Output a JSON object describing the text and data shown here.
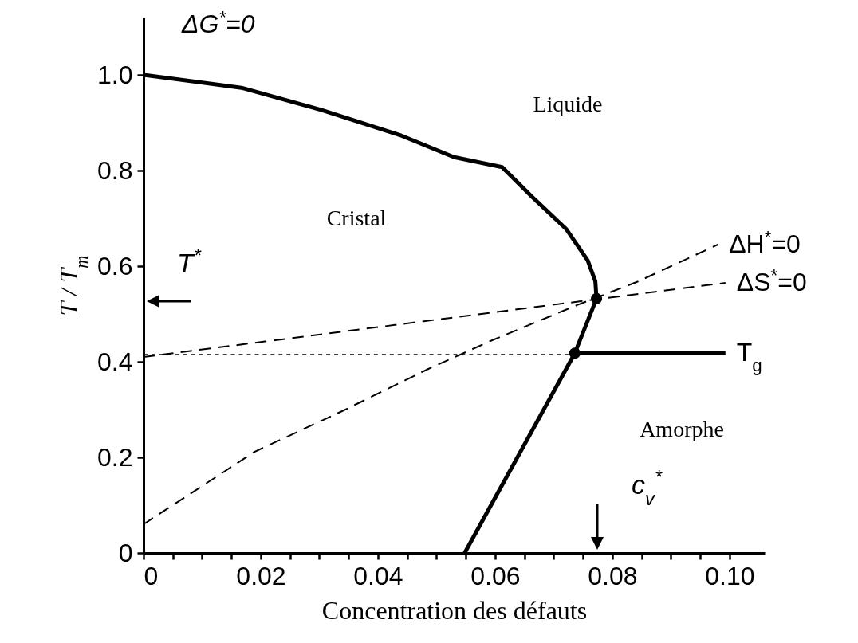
{
  "chart_data": {
    "type": "line",
    "xlabel": "Concentration des défauts",
    "ylabel": "T / T$_{m}$",
    "xlim": [
      0,
      0.106
    ],
    "ylim": [
      0,
      1.12
    ],
    "xticks": [
      0,
      {
        "value": 0.005,
        "label": null
      },
      {
        "value": 0.01,
        "label": null
      },
      {
        "value": 0.015,
        "label": null
      },
      0.02,
      {
        "value": 0.025,
        "label": null
      },
      {
        "value": 0.03,
        "label": null
      },
      {
        "value": 0.035,
        "label": null
      },
      0.04,
      {
        "value": 0.045,
        "label": null
      },
      {
        "value": 0.05,
        "label": null
      },
      {
        "value": 0.055,
        "label": null
      },
      0.06,
      {
        "value": 0.065,
        "label": null
      },
      {
        "value": 0.07,
        "label": null
      },
      {
        "value": 0.075,
        "label": null
      },
      0.08,
      {
        "value": 0.085,
        "label": null
      },
      {
        "value": 0.09,
        "label": null
      },
      {
        "value": 0.095,
        "label": null
      },
      {
        "value": 0.1,
        "label": "0.10"
      }
    ],
    "yticks": [
      0,
      0.2,
      0.4,
      0.6,
      0.8,
      {
        "value": 1,
        "label": "1.0"
      }
    ],
    "series": [
      {
        "name": "ΔG$^{*}$=0",
        "line_style": "solid",
        "color": "#000000",
        "x": [
          0.0548,
          0.0736,
          0.0773,
          0.0771,
          0.0758,
          0.0721,
          0.0663,
          0.0612,
          0.053,
          0.044,
          0.0303,
          0.0167,
          0
        ],
        "values": [
          0,
          0.418,
          0.532,
          0.568,
          0.612,
          0.678,
          0.745,
          0.807,
          0.828,
          0.873,
          0.927,
          0.973,
          1.0
        ]
      },
      {
        "name": "ΔH$^{*}$=0",
        "line_style": "dashed",
        "color": "#000000",
        "x": [
          0,
          0.019,
          0.0336,
          0.0486,
          0.0595,
          0.0739,
          0.0844,
          0.098
        ],
        "values": [
          0.06,
          0.212,
          0.295,
          0.385,
          0.445,
          0.518,
          0.568,
          0.645
        ]
      },
      {
        "name": "ΔS$^{*}$=0",
        "line_style": "dashed",
        "color": "#000000",
        "x": [
          0,
          0.0993
        ],
        "values": [
          0.41,
          0.565
        ]
      },
      {
        "name": "T$_{g}$",
        "line_style": "solid",
        "color": "#000000",
        "x": [
          0.0736,
          0.0993
        ],
        "values": [
          0.418,
          0.418
        ]
      },
      {
        "line_style": "dotted",
        "color": "#000000",
        "x": [
          0,
          0.0736
        ],
        "values": [
          0.415,
          0.415
        ]
      },
      {
        "type": "scatter",
        "marker": "circle",
        "color": "#000000",
        "x": [
          0.0773,
          0.0736
        ],
        "values": [
          0.532,
          0.418
        ]
      }
    ],
    "annotations": [
      "T$^{*}$",
      "c$_{v}$$^{*}$",
      "Liquide",
      "Cristal",
      "Amorphe"
    ]
  }
}
